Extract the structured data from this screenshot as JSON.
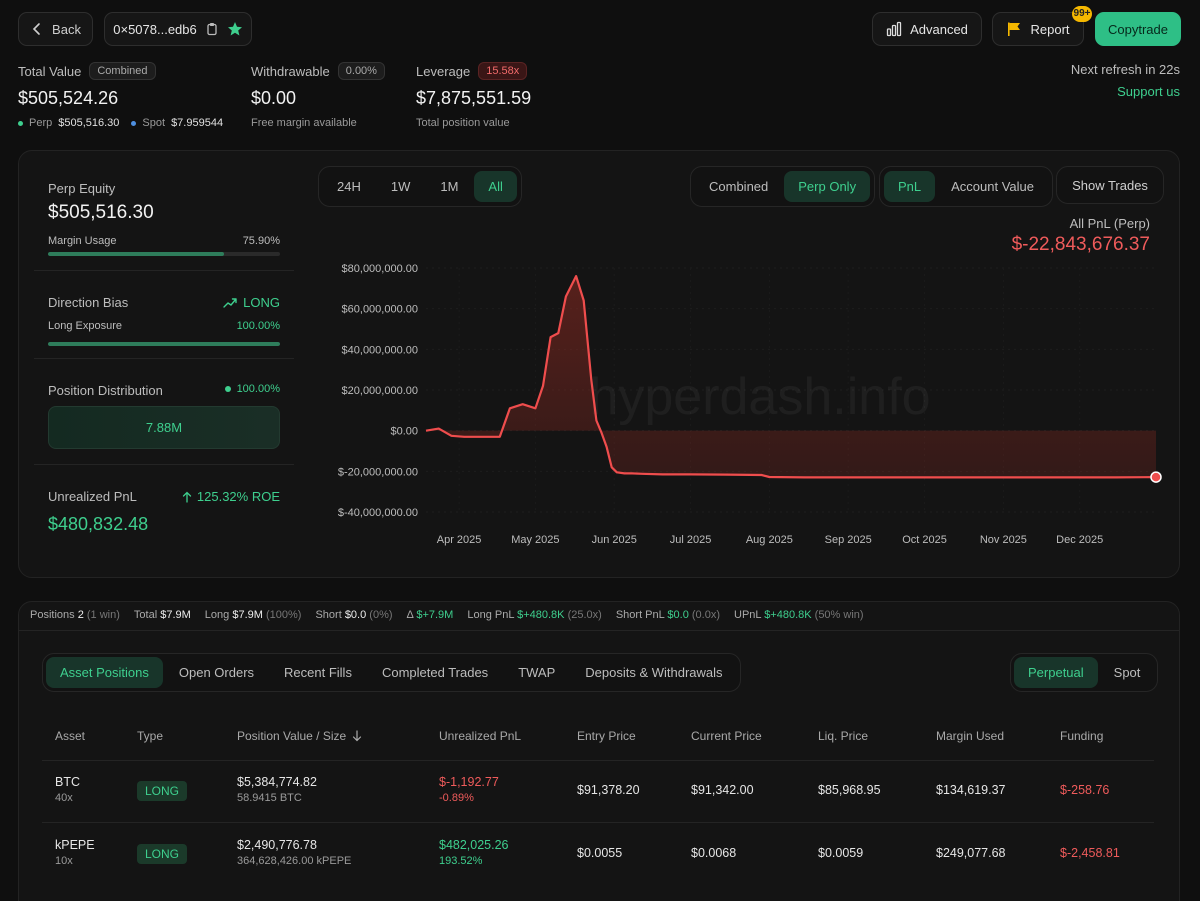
{
  "header": {
    "back_label": "Back",
    "address": "0×5078...edb6",
    "advanced_label": "Advanced",
    "report_label": "Report",
    "report_badge": "99+",
    "copytrade_label": "Copytrade",
    "refresh_text": "Next refresh in 22s",
    "support_label": "Support us"
  },
  "summary": {
    "total_value_label": "Total Value",
    "total_value_pill": "Combined",
    "total_value": "$505,524.26",
    "perp_label": "Perp",
    "perp_value": "$505,516.30",
    "spot_label": "Spot",
    "spot_value": "$7.959544",
    "withdrawable_label": "Withdrawable",
    "withdrawable_pill": "0.00%",
    "withdrawable_value": "$0.00",
    "withdrawable_sub": "Free margin available",
    "leverage_label": "Leverage",
    "leverage_pill": "15.58x",
    "leverage_value": "$7,875,551.59",
    "leverage_sub": "Total position value"
  },
  "left_panel": {
    "perp_equity_label": "Perp Equity",
    "perp_equity": "$505,516.30",
    "margin_usage_label": "Margin Usage",
    "margin_usage": "75.90%",
    "margin_usage_fraction": 0.759,
    "direction_bias_label": "Direction Bias",
    "direction_bias": "LONG",
    "long_exposure_label": "Long Exposure",
    "long_exposure": "100.00%",
    "long_exposure_fraction": 1.0,
    "position_dist_label": "Position Distribution",
    "position_dist_pct": "100.00%",
    "position_dist_value": "7.88M",
    "upnl_label": "Unrealized PnL",
    "upnl_roe": "125.32% ROE",
    "upnl_value": "$480,832.48"
  },
  "chart_controls": {
    "ranges": [
      "24H",
      "1W",
      "1M",
      "All"
    ],
    "active_range": "All",
    "modes": [
      "Combined",
      "Perp Only"
    ],
    "active_mode": "Perp Only",
    "metrics": [
      "PnL",
      "Account Value"
    ],
    "active_metric": "PnL",
    "show_trades_label": "Show Trades",
    "pnl_caption": "All PnL (Perp)",
    "pnl_value": "$-22,843,676.37",
    "watermark": "hyperdash.info"
  },
  "chart_data": {
    "type": "area",
    "x_labels": [
      "Apr 2025",
      "May 2025",
      "Jun 2025",
      "Jul 2025",
      "Aug 2025",
      "Sep 2025",
      "Oct 2025",
      "Nov 2025",
      "Dec 2025"
    ],
    "y_ticks": [
      "$80,000,000.00",
      "$60,000,000.00",
      "$40,000,000.00",
      "$20,000,000.00",
      "$0.00",
      "$-20,000,000.00",
      "$-40,000,000.00"
    ],
    "ylim": [
      -40000000,
      80000000
    ],
    "line_color": "#ef4d4d",
    "series": [
      {
        "x": [
          "2025-03-19",
          "2025-03-24",
          "2025-03-29",
          "2025-04-03",
          "2025-04-07",
          "2025-04-12",
          "2025-04-17",
          "2025-04-21",
          "2025-04-26",
          "2025-05-01",
          "2025-05-04",
          "2025-05-07",
          "2025-05-10",
          "2025-05-13",
          "2025-05-17",
          "2025-05-20",
          "2025-05-23",
          "2025-05-25",
          "2025-05-27",
          "2025-05-29",
          "2025-05-31",
          "2025-06-02",
          "2025-06-05",
          "2025-06-08",
          "2025-06-12",
          "2025-06-20",
          "2025-07-01",
          "2025-07-15",
          "2025-07-29",
          "2025-08-01",
          "2025-08-15",
          "2025-09-01",
          "2025-09-15",
          "2025-10-01",
          "2025-10-15",
          "2025-11-01",
          "2025-11-15",
          "2025-12-01",
          "2025-12-15",
          "2025-12-31"
        ],
        "y": [
          0,
          1000000,
          -2500000,
          -3000000,
          -3000000,
          -3000000,
          -3000000,
          11000000,
          13000000,
          11000000,
          22000000,
          46000000,
          48000000,
          66000000,
          76000000,
          64000000,
          25000000,
          5000000,
          -1000000,
          -8000000,
          -18000000,
          -20500000,
          -21000000,
          -21000000,
          -21200000,
          -21500000,
          -21500000,
          -21600000,
          -21800000,
          -22800000,
          -23000000,
          -23000000,
          -23000000,
          -23000000,
          -23000000,
          -23000000,
          -23000000,
          -23000000,
          -23000000,
          -22843676
        ]
      }
    ]
  },
  "stats_bar": {
    "positions_label": "Positions",
    "positions_value": "2",
    "positions_note": "(1 win)",
    "total_label": "Total",
    "total_value": "$7.9M",
    "long_label": "Long",
    "long_value": "$7.9M",
    "long_note": "(100%)",
    "short_label": "Short",
    "short_value": "$0.0",
    "short_note": "(0%)",
    "delta_label": "Δ",
    "delta_value": "$+7.9M",
    "long_pnl_label": "Long PnL",
    "long_pnl_value": "$+480.8K",
    "long_pnl_note": "(25.0x)",
    "short_pnl_label": "Short PnL",
    "short_pnl_value": "$0.0",
    "short_pnl_note": "(0.0x)",
    "upnl_label": "UPnL",
    "upnl_value": "$+480.8K",
    "upnl_note": "(50% win)"
  },
  "tabs": {
    "items": [
      "Asset Positions",
      "Open Orders",
      "Recent Fills",
      "Completed Trades",
      "TWAP",
      "Deposits & Withdrawals"
    ],
    "active": "Asset Positions",
    "market": [
      "Perpetual",
      "Spot"
    ],
    "active_market": "Perpetual"
  },
  "table": {
    "columns": [
      "Asset",
      "Type",
      "Position Value / Size",
      "Unrealized PnL",
      "Entry Price",
      "Current Price",
      "Liq. Price",
      "Margin Used",
      "Funding"
    ],
    "rows": [
      {
        "asset": "BTC",
        "leverage": "40x",
        "type": "LONG",
        "value": "$5,384,774.82",
        "size": "58.9415 BTC",
        "upnl": "$-1,192.77",
        "upnl_pct": "-0.89%",
        "entry": "$91,378.20",
        "current": "$91,342.00",
        "liq": "$85,968.95",
        "margin": "$134,619.37",
        "funding": "$-258.76"
      },
      {
        "asset": "kPEPE",
        "leverage": "10x",
        "type": "LONG",
        "value": "$2,490,776.78",
        "size": "364,628,426.00 kPEPE",
        "upnl": "$482,025.26",
        "upnl_pct": "193.52%",
        "entry": "$0.0055",
        "current": "$0.0068",
        "liq": "$0.0059",
        "margin": "$249,077.68",
        "funding": "$-2,458.81"
      }
    ]
  }
}
